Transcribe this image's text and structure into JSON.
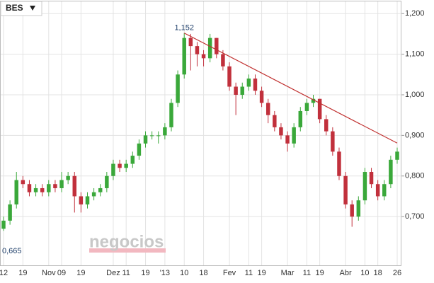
{
  "chart_data": {
    "type": "candlestick",
    "title": "BES",
    "watermark": "negocios",
    "categories": [
      "12",
      null,
      null,
      "19",
      null,
      null,
      null,
      "Nov",
      null,
      "09",
      null,
      null,
      "19",
      null,
      null,
      null,
      null,
      "Dez",
      null,
      "11",
      null,
      null,
      "19",
      null,
      null,
      "'13",
      null,
      null,
      "10",
      null,
      null,
      "18",
      null,
      null,
      null,
      "Fev",
      null,
      null,
      "11",
      null,
      "19",
      null,
      null,
      null,
      "Mar",
      null,
      null,
      "11",
      null,
      "19",
      null,
      null,
      null,
      "Abr",
      null,
      null,
      "10",
      null,
      "18",
      null,
      null,
      "26"
    ],
    "open": [
      0.67,
      0.69,
      0.73,
      0.79,
      0.78,
      0.76,
      0.77,
      0.76,
      0.78,
      0.77,
      0.79,
      0.8,
      0.75,
      0.73,
      0.75,
      0.76,
      0.77,
      0.8,
      0.83,
      0.82,
      0.83,
      0.85,
      0.88,
      0.9,
      0.9,
      0.9,
      0.92,
      0.98,
      1.05,
      1.14,
      1.12,
      1.1,
      1.09,
      1.14,
      1.1,
      1.07,
      1.02,
      1.0,
      1.02,
      1.04,
      1.01,
      0.98,
      0.95,
      0.92,
      0.9,
      0.88,
      0.92,
      0.96,
      0.98,
      0.99,
      0.94,
      0.91,
      0.86,
      0.8,
      0.73,
      0.7,
      0.74,
      0.81,
      0.78,
      0.75,
      0.78,
      0.84
    ],
    "high": [
      0.7,
      0.74,
      0.81,
      0.8,
      0.79,
      0.78,
      0.78,
      0.79,
      0.79,
      0.81,
      0.81,
      0.81,
      0.76,
      0.76,
      0.77,
      0.78,
      0.81,
      0.84,
      0.84,
      0.84,
      0.86,
      0.89,
      0.91,
      0.91,
      0.91,
      0.93,
      0.99,
      1.06,
      1.152,
      1.15,
      1.13,
      1.11,
      1.15,
      1.14,
      1.11,
      1.08,
      1.03,
      1.03,
      1.05,
      1.05,
      1.02,
      0.99,
      0.96,
      0.93,
      0.91,
      0.93,
      0.97,
      0.99,
      1.0,
      0.99,
      0.95,
      0.92,
      0.87,
      0.81,
      0.74,
      0.75,
      0.82,
      0.82,
      0.79,
      0.79,
      0.85,
      0.87
    ],
    "low": [
      0.665,
      0.68,
      0.72,
      0.77,
      0.75,
      0.75,
      0.75,
      0.75,
      0.76,
      0.76,
      0.78,
      0.71,
      0.71,
      0.72,
      0.74,
      0.75,
      0.76,
      0.79,
      0.81,
      0.81,
      0.82,
      0.84,
      0.87,
      0.89,
      0.88,
      0.89,
      0.91,
      0.97,
      1.04,
      1.06,
      1.07,
      1.07,
      1.08,
      1.09,
      1.06,
      1.01,
      0.95,
      0.99,
      1.01,
      1.0,
      0.97,
      0.93,
      0.91,
      0.89,
      0.86,
      0.87,
      0.91,
      0.95,
      0.97,
      0.93,
      0.9,
      0.85,
      0.79,
      0.72,
      0.675,
      0.69,
      0.73,
      0.77,
      0.74,
      0.74,
      0.77,
      0.83
    ],
    "close": [
      0.69,
      0.73,
      0.79,
      0.78,
      0.76,
      0.77,
      0.76,
      0.78,
      0.77,
      0.79,
      0.8,
      0.75,
      0.73,
      0.75,
      0.76,
      0.77,
      0.8,
      0.83,
      0.82,
      0.83,
      0.85,
      0.88,
      0.9,
      0.9,
      0.9,
      0.92,
      0.98,
      1.05,
      1.14,
      1.12,
      1.1,
      1.09,
      1.14,
      1.1,
      1.07,
      1.02,
      1.0,
      1.02,
      1.04,
      1.01,
      0.98,
      0.95,
      0.92,
      0.9,
      0.88,
      0.92,
      0.96,
      0.98,
      0.99,
      0.94,
      0.91,
      0.86,
      0.8,
      0.73,
      0.7,
      0.74,
      0.81,
      0.78,
      0.75,
      0.78,
      0.84,
      0.86
    ],
    "up_color": "#3aa83a",
    "down_color": "#c1303c",
    "trendline": {
      "x": [
        28,
        61
      ],
      "values": [
        1.152,
        0.881
      ],
      "color": "#c0302f"
    },
    "annotations": [
      {
        "label": "1,152",
        "value": 1.152,
        "index": 28
      },
      {
        "label": "0,665",
        "value": 0.665,
        "index": 0
      }
    ],
    "ylim": [
      0.58,
      1.23
    ],
    "yticks": [
      {
        "value": 0.7,
        "label": "0,700"
      },
      {
        "value": 0.8,
        "label": "0,800"
      },
      {
        "value": 0.9,
        "label": "0,900"
      },
      {
        "value": 1.0,
        "label": "1,000"
      },
      {
        "value": 1.1,
        "label": "1,100"
      },
      {
        "value": 1.2,
        "label": "1,200"
      }
    ],
    "grid": true
  }
}
